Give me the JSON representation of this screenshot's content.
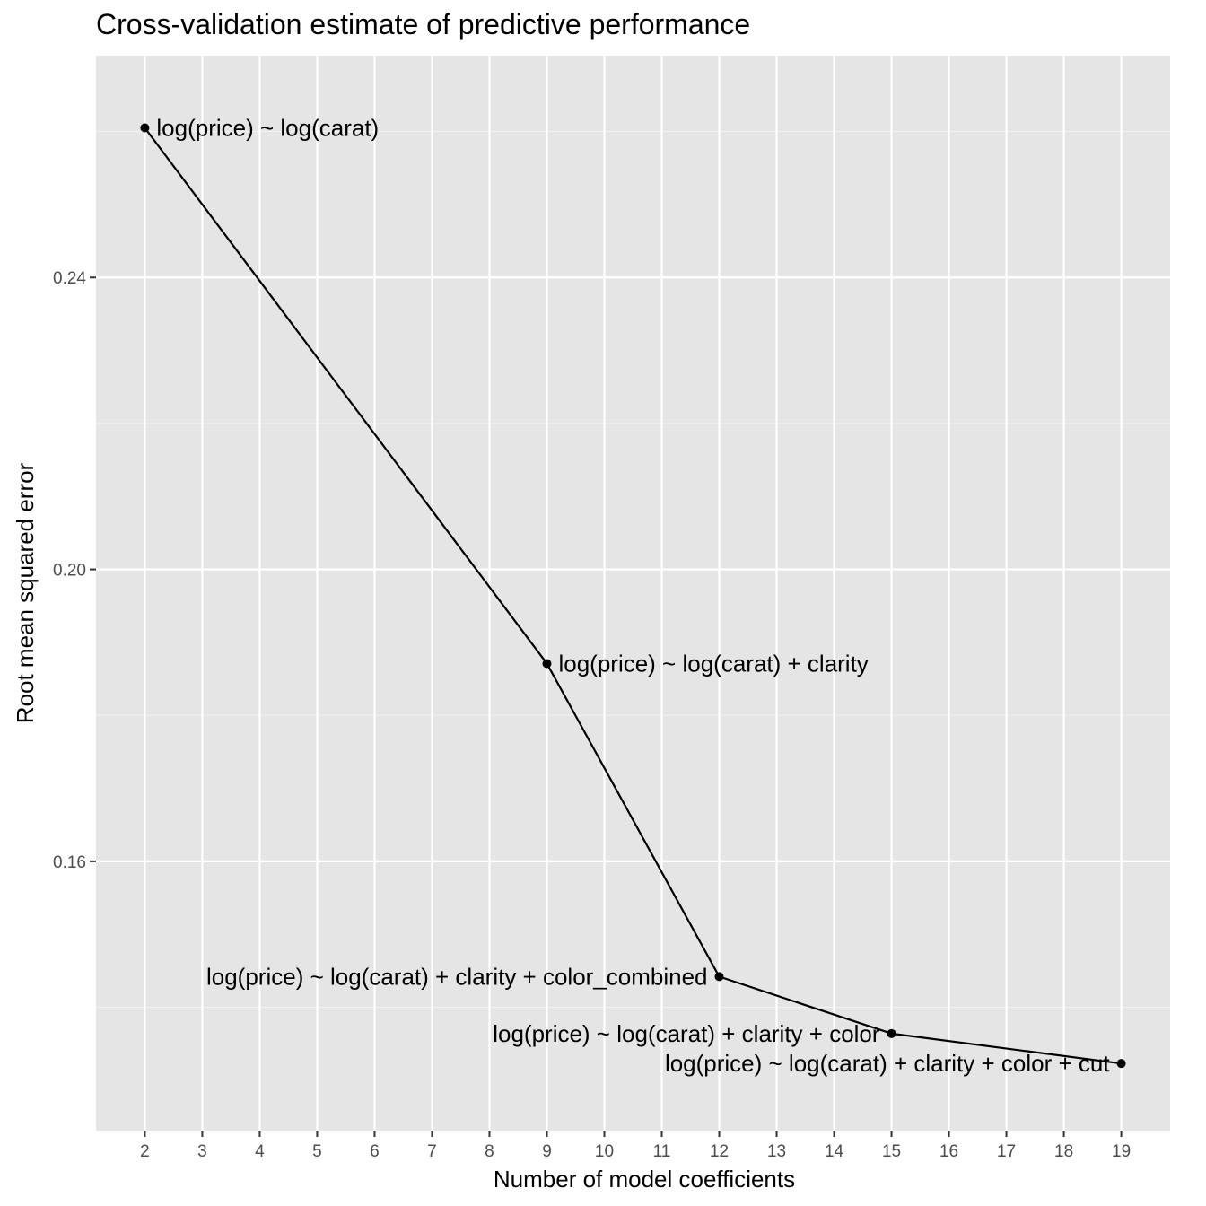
{
  "chart_data": {
    "type": "line",
    "title": "Cross-validation estimate of predictive performance",
    "xlabel": "Number of model coefficients",
    "ylabel": "Root mean squared error",
    "xlim": [
      1.15,
      19.85
    ],
    "ylim": [
      0.1231,
      0.2704
    ],
    "x_ticks": [
      2,
      3,
      4,
      5,
      6,
      7,
      8,
      9,
      10,
      11,
      12,
      13,
      14,
      15,
      16,
      17,
      18,
      19
    ],
    "y_ticks": [
      0.16,
      0.2,
      0.24
    ],
    "y_tick_labels": [
      "0.16",
      "0.20",
      "0.24"
    ],
    "y_minor_ticks": [
      0.14,
      0.18,
      0.22,
      0.26
    ],
    "grid": true,
    "legend": "none",
    "series": [
      {
        "color": "#000000",
        "points": [
          {
            "x": 2,
            "y": 0.2605,
            "label": "log(price) ~ log(carat)",
            "label_side": "right"
          },
          {
            "x": 9,
            "y": 0.1871,
            "label": "log(price) ~ log(carat) + clarity",
            "label_side": "right"
          },
          {
            "x": 12,
            "y": 0.1442,
            "label": "log(price) ~ log(carat) + clarity + color_combined",
            "label_side": "left"
          },
          {
            "x": 15,
            "y": 0.1364,
            "label": "log(price) ~ log(carat) + clarity + color",
            "label_side": "left"
          },
          {
            "x": 19,
            "y": 0.1323,
            "label": "log(price) ~ log(carat) + clarity + color + cut",
            "label_side": "left"
          }
        ]
      }
    ]
  }
}
